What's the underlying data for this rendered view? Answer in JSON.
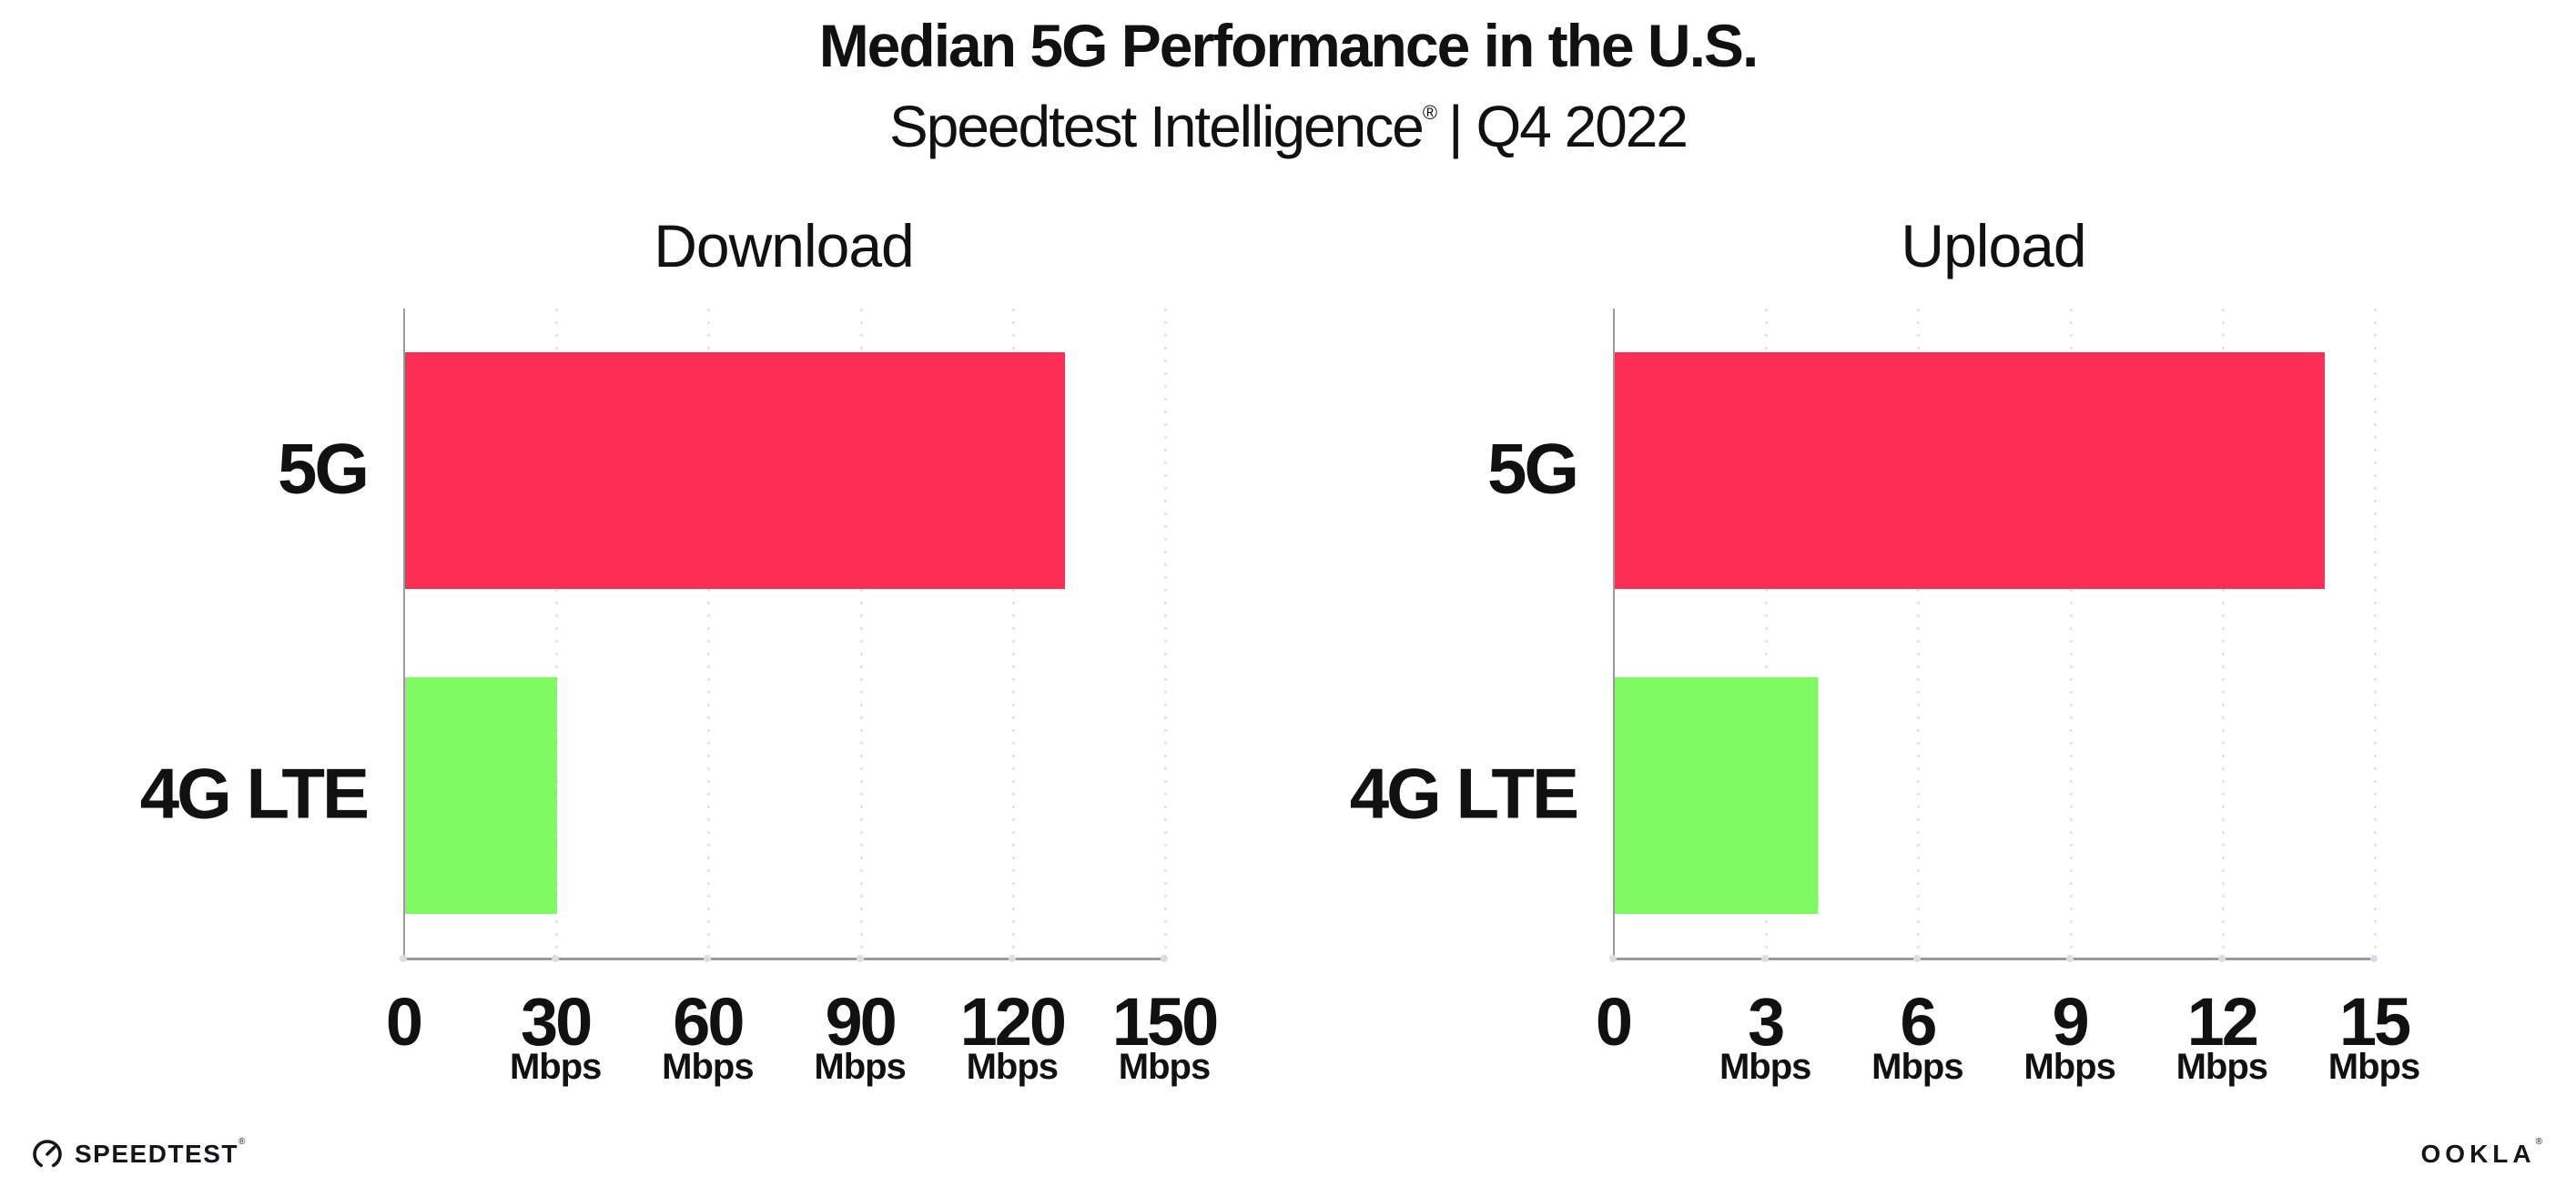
{
  "header": {
    "title": "Median 5G Performance in the U.S.",
    "subtitle": {
      "brand": "Speedtest Intelligence",
      "registered_mark": "®",
      "rest": "| Q4 2022"
    }
  },
  "chart_data": [
    {
      "type": "bar",
      "orientation": "horizontal",
      "title": "Download",
      "categories": [
        "5G",
        "4G LTE"
      ],
      "values": [
        130,
        30
      ],
      "unit": "Mbps",
      "xlim": [
        0,
        150
      ],
      "xticks": [
        0,
        30,
        60,
        90,
        120,
        150
      ],
      "bar_colors": [
        "#FC2E56",
        "#80FA62"
      ],
      "grid": "vertical-dotted",
      "legend": "none"
    },
    {
      "type": "bar",
      "orientation": "horizontal",
      "title": "Upload",
      "categories": [
        "5G",
        "4G LTE"
      ],
      "values": [
        14,
        4
      ],
      "unit": "Mbps",
      "xlim": [
        0,
        15
      ],
      "xticks": [
        0,
        3,
        6,
        9,
        12,
        15
      ],
      "bar_colors": [
        "#FC2E56",
        "#80FA62"
      ],
      "grid": "vertical-dotted",
      "legend": "none"
    }
  ],
  "footer": {
    "speedtest_logo_text": "SPEEDTEST",
    "speedtest_mark": "®",
    "gauge_icon": "speedtest-gauge-icon",
    "ookla_logo_text": "OOKLA",
    "ookla_mark": "®"
  },
  "colors": {
    "background": "#ffffff",
    "bar_5g": "#FC2E56",
    "bar_4g_lte": "#80FA62",
    "axis": "#9a9a9a",
    "gridline": "#e4e4ee",
    "text": "#111111"
  }
}
